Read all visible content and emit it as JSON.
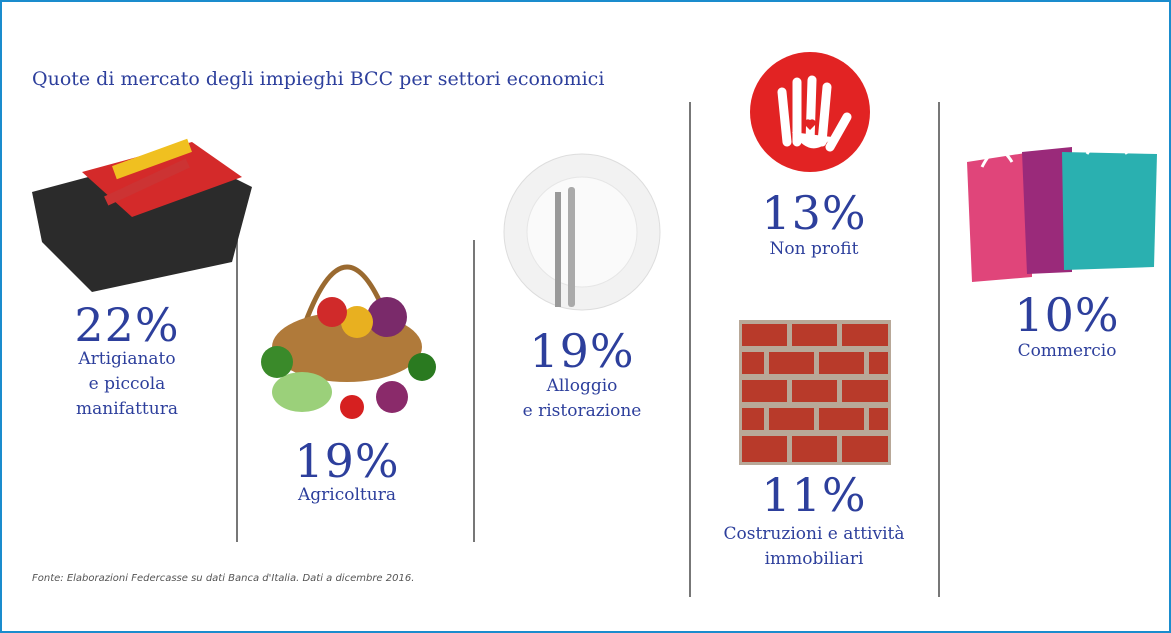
{
  "title": "Quote di mercato degli impieghi BCC per settori economici",
  "items": [
    {
      "value": "22%",
      "label": [
        "Artigianato",
        "e piccola",
        "manifattura"
      ]
    },
    {
      "value": "19%",
      "label": [
        "Agricoltura"
      ]
    },
    {
      "value": "19%",
      "label": [
        "Alloggio",
        "e ristorazione"
      ]
    },
    {
      "value": "13%",
      "label": [
        "Non profit"
      ]
    },
    {
      "value": "11%",
      "label": [
        "Costruzioni e attività",
        "immobiliari"
      ]
    },
    {
      "value": "10%",
      "label": [
        "Commercio"
      ]
    }
  ],
  "source": "Fonte: Elaborazioni Federcasse su dati Banca d'Italia. Dati a dicembre 2016."
}
